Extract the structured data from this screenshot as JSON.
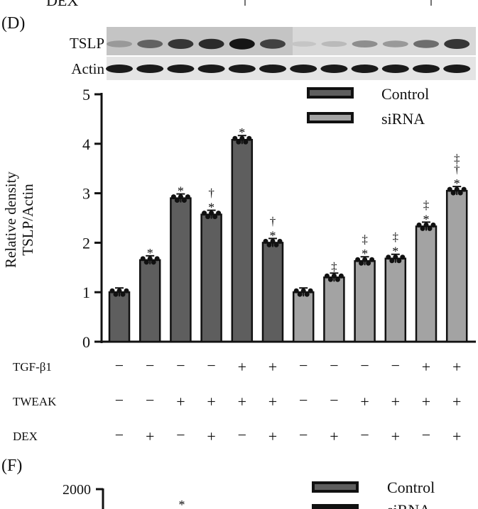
{
  "top_partial": {
    "row_label": "DEX"
  },
  "panel_d": {
    "panel_label": "(D)",
    "blot": {
      "rows": [
        "TSLP",
        "Actin"
      ],
      "tslp_intensity": [
        0.35,
        0.6,
        0.8,
        0.85,
        0.95,
        0.75,
        0.15,
        0.2,
        0.4,
        0.35,
        0.55,
        0.8
      ]
    },
    "chart_data": {
      "type": "bar",
      "ylabel": [
        "Relative density",
        "TSLP/Actin"
      ],
      "ylim": [
        0,
        5
      ],
      "yticks": [
        "0",
        "1",
        "2",
        "3",
        "4",
        "5"
      ],
      "legend": {
        "position": "top-right",
        "entries": [
          {
            "name": "Control",
            "color": "#5e5e5e"
          },
          {
            "name": "siRNA",
            "color": "#a3a3a3"
          }
        ]
      },
      "series": [
        {
          "name": "Control",
          "values": [
            1.0,
            1.65,
            2.9,
            2.57,
            4.08,
            2.0
          ]
        },
        {
          "name": "siRNA",
          "values": [
            1.0,
            1.3,
            1.63,
            1.68,
            2.33,
            3.05
          ]
        }
      ],
      "annotations": [
        [],
        [
          "*"
        ],
        [
          "*"
        ],
        [
          "*",
          "†"
        ],
        [
          "*"
        ],
        [
          "*",
          "†"
        ],
        [],
        [
          "‡"
        ],
        [
          "*",
          "‡"
        ],
        [
          "*",
          "‡"
        ],
        [
          "*",
          "‡"
        ],
        [
          "*",
          "†",
          "‡"
        ]
      ],
      "conditions": [
        {
          "label": "TGF-β1",
          "signs": [
            "−",
            "−",
            "−",
            "−",
            "+",
            "+",
            "−",
            "−",
            "−",
            "−",
            "+",
            "+"
          ]
        },
        {
          "label": "TWEAK",
          "signs": [
            "−",
            "−",
            "+",
            "+",
            "+",
            "+",
            "−",
            "−",
            "+",
            "+",
            "+",
            "+"
          ]
        },
        {
          "label": "DEX",
          "signs": [
            "−",
            "+",
            "−",
            "+",
            "−",
            "+",
            "−",
            "+",
            "−",
            "+",
            "−",
            "+"
          ]
        }
      ]
    }
  },
  "panel_f": {
    "panel_label": "(F)",
    "ytick_top": "2000",
    "legend": [
      "Control",
      "siRNA"
    ],
    "annotation": "*"
  }
}
